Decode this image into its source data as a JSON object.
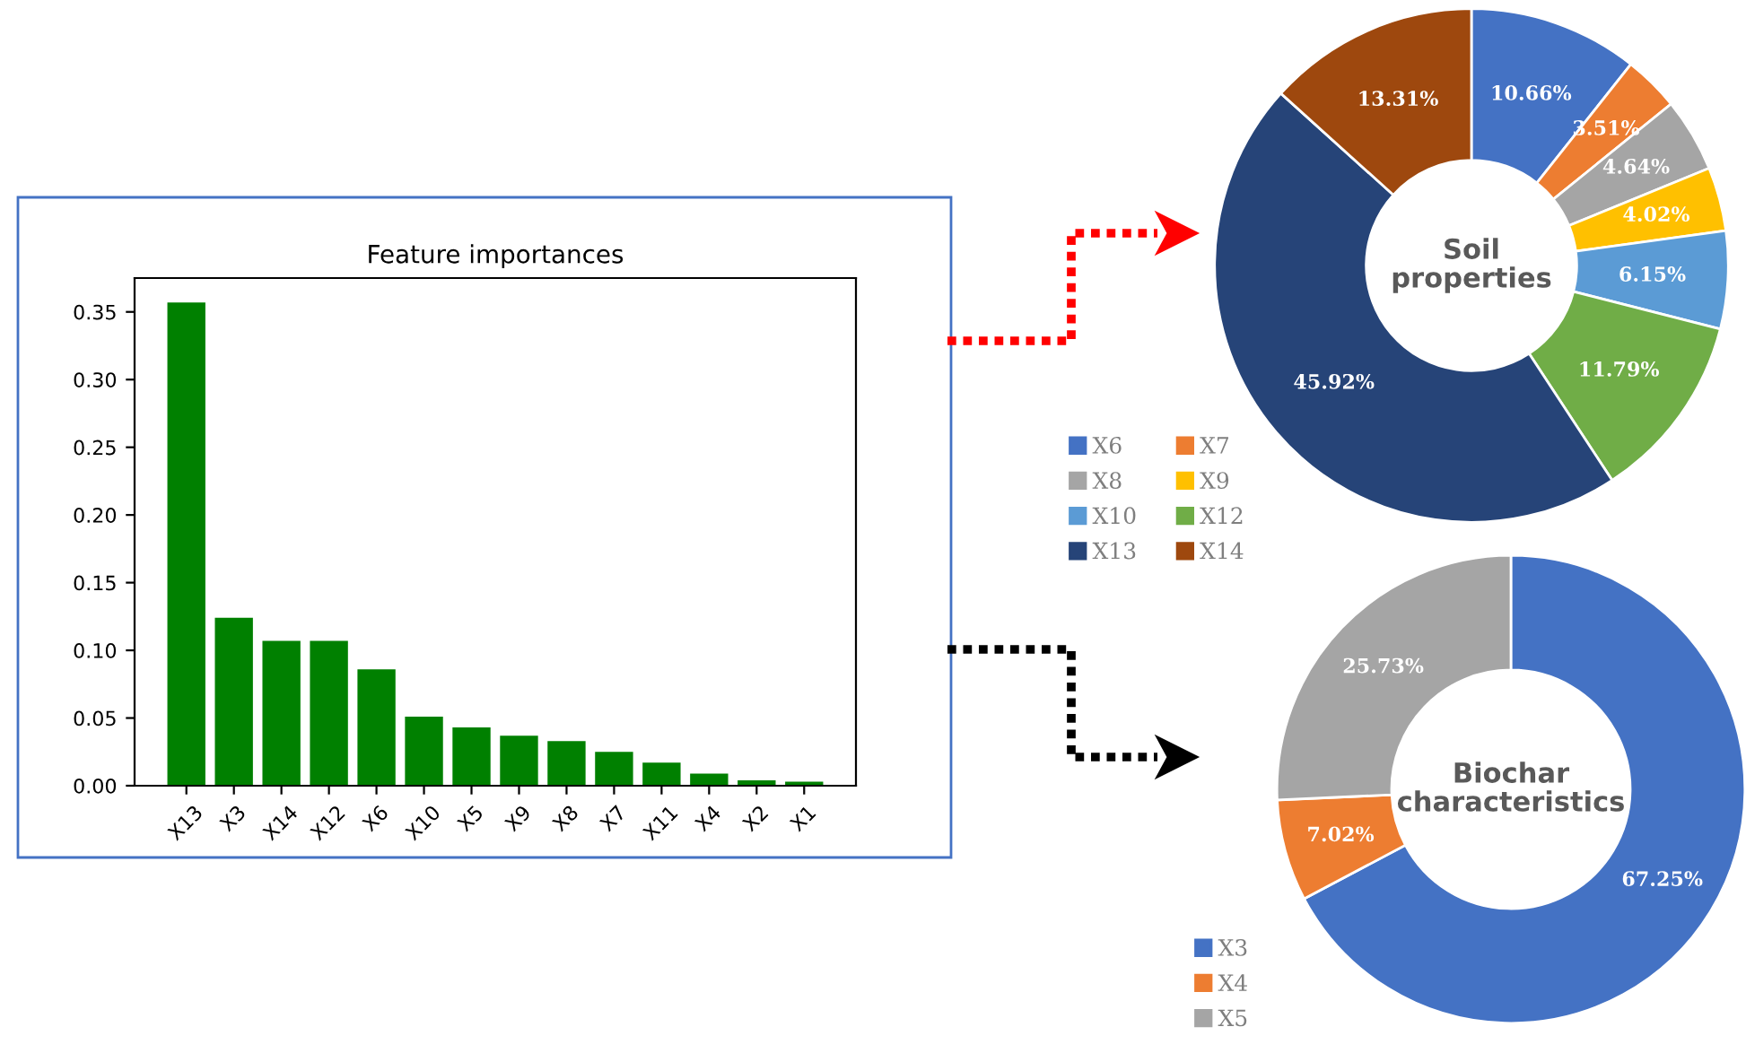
{
  "chart_data": [
    {
      "type": "bar",
      "title": "Feature importances",
      "categories": [
        "X13",
        "X3",
        "X14",
        "X12",
        "X6",
        "X10",
        "X5",
        "X9",
        "X8",
        "X7",
        "X11",
        "X4",
        "X2",
        "X1"
      ],
      "values": [
        0.357,
        0.124,
        0.107,
        0.107,
        0.086,
        0.051,
        0.043,
        0.037,
        0.033,
        0.025,
        0.017,
        0.009,
        0.004,
        0.003
      ],
      "color": "#008000",
      "ylim": [
        0,
        0.375
      ],
      "yticks": [
        {
          "value": 0,
          "label": "0.00"
        },
        {
          "value": 0.05,
          "label": "0.05"
        },
        {
          "value": 0.1,
          "label": "0.10"
        },
        {
          "value": 0.15,
          "label": "0.15"
        },
        {
          "value": 0.2,
          "label": "0.20"
        },
        {
          "value": 0.25,
          "label": "0.25"
        },
        {
          "value": 0.3,
          "label": "0.30"
        },
        {
          "value": 0.35,
          "label": "0.35"
        }
      ],
      "grid": false,
      "legend": false
    },
    {
      "type": "donut",
      "title": "Soil\nproperties",
      "categories": [
        "X6",
        "X7",
        "X8",
        "X9",
        "X10",
        "X12",
        "X13",
        "X14"
      ],
      "values": [
        10.66,
        3.51,
        4.64,
        4.02,
        6.15,
        11.79,
        45.92,
        13.31
      ],
      "value_labels": [
        "10.66%",
        "3.51%",
        "4.64%",
        "4.02%",
        "6.15%",
        "11.79%",
        "45.92%",
        "13.31%"
      ],
      "colors": [
        "#4472c4",
        "#ed7d31",
        "#a5a5a5",
        "#ffc000",
        "#5b9bd5",
        "#70ad47",
        "#264478",
        "#9e480e"
      ],
      "legend": "left"
    },
    {
      "type": "donut",
      "title": "Biochar\ncharacteristics",
      "categories": [
        "X3",
        "X4",
        "X5"
      ],
      "values": [
        67.25,
        7.02,
        25.73
      ],
      "value_labels": [
        "67.25%",
        "7.02%",
        "25.73%"
      ],
      "colors": [
        "#4472c4",
        "#ed7d31",
        "#a5a5a5"
      ],
      "legend": "bottom left"
    }
  ]
}
